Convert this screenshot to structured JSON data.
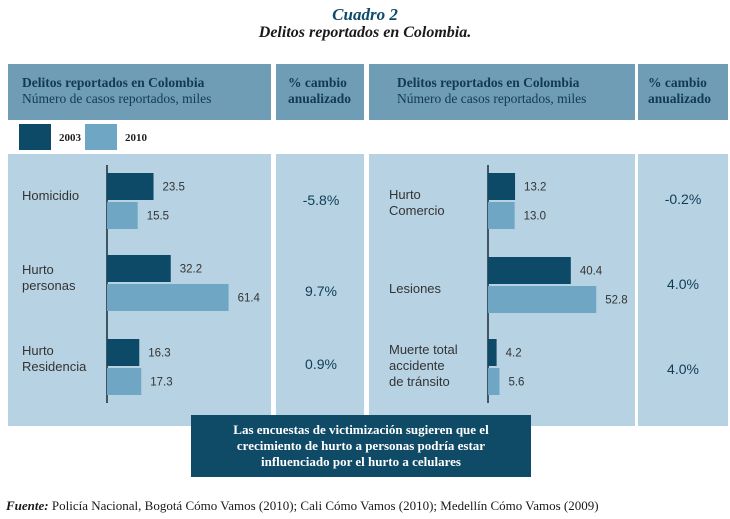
{
  "title": "Cuadro 2",
  "subtitle": "Delitos reportados en Colombia.",
  "left_header": {
    "line1": "Delitos reportados en Colombia",
    "line2": "Número de casos reportados, miles"
  },
  "right_header": {
    "line1": "Delitos reportados en Colombia",
    "line2": "Número de casos reportados, miles"
  },
  "pct_header_left": {
    "line1": "% cambio",
    "line2": "anualizado"
  },
  "pct_header_right": {
    "line1": "% cambio",
    "line2": "anualizado"
  },
  "legend": [
    {
      "label": "2003",
      "color": "#0d4a68"
    },
    {
      "label": "2010",
      "color": "#6fa6c4"
    }
  ],
  "colors": {
    "header_bg": "#6f9db6",
    "panel_bg": "#b7d3e3",
    "bar_2003": "#0d4a68",
    "bar_2010": "#6fa6c4",
    "callout_bg": "#0f4a67",
    "title": "#0f4a6b"
  },
  "categories_left": [
    {
      "line1": "Homicidio",
      "line2": ""
    },
    {
      "line1": "Hurto",
      "line2": "personas"
    },
    {
      "line1": "Hurto",
      "line2": "Residencia"
    }
  ],
  "categories_right": [
    {
      "line1": "Hurto",
      "line2": "Comercio",
      "line3": ""
    },
    {
      "line1": "Lesiones",
      "line2": "",
      "line3": ""
    },
    {
      "line1": "Muerte total",
      "line2": "accidente",
      "line3": "de tránsito"
    }
  ],
  "pct_left": [
    "-5.8%",
    "9.7%",
    "0.9%"
  ],
  "pct_right": [
    "-0.2%",
    "4.0%",
    "4.0%"
  ],
  "chart_data": [
    {
      "type": "bar",
      "orientation": "horizontal",
      "title": "Delitos reportados en Colombia",
      "xlabel": "Número de casos reportados, miles",
      "categories": [
        "Homicidio",
        "Hurto personas",
        "Hurto Residencia"
      ],
      "series": [
        {
          "name": "2003",
          "values": [
            23.5,
            32.2,
            16.3
          ],
          "labels": [
            "23.5",
            "32.2",
            "16.3"
          ]
        },
        {
          "name": "2010",
          "values": [
            15.5,
            61.4,
            17.3
          ],
          "labels": [
            "15.5",
            "61.4",
            "17.3"
          ]
        }
      ],
      "pct_change": [
        "-5.8%",
        "9.7%",
        "0.9%"
      ]
    },
    {
      "type": "bar",
      "orientation": "horizontal",
      "title": "Delitos reportados en Colombia",
      "xlabel": "Número de casos reportados, miles",
      "categories": [
        "Hurto Comercio",
        "Lesiones",
        "Muerte total accidente de tránsito"
      ],
      "series": [
        {
          "name": "2003",
          "values": [
            13.2,
            40.4,
            4.2
          ],
          "labels": [
            "13.2",
            "40.4",
            "4.2"
          ]
        },
        {
          "name": "2010",
          "values": [
            13.0,
            52.8,
            5.6
          ],
          "labels": [
            "13.0",
            "52.8",
            "5.6"
          ]
        }
      ],
      "pct_change": [
        "-0.2%",
        "4.0%",
        "4.0%"
      ]
    }
  ],
  "callout": {
    "line1": "Las encuestas de victimización sugieren que el",
    "line2": "crecimiento de hurto a personas podría estar",
    "line3": "influenciado por el hurto a celulares"
  },
  "source": {
    "label": "Fuente:",
    "text": " Policía Nacional, Bogotá Cómo Vamos (2010); Cali Cómo Vamos (2010); Medellín Cómo Vamos (2009)"
  }
}
